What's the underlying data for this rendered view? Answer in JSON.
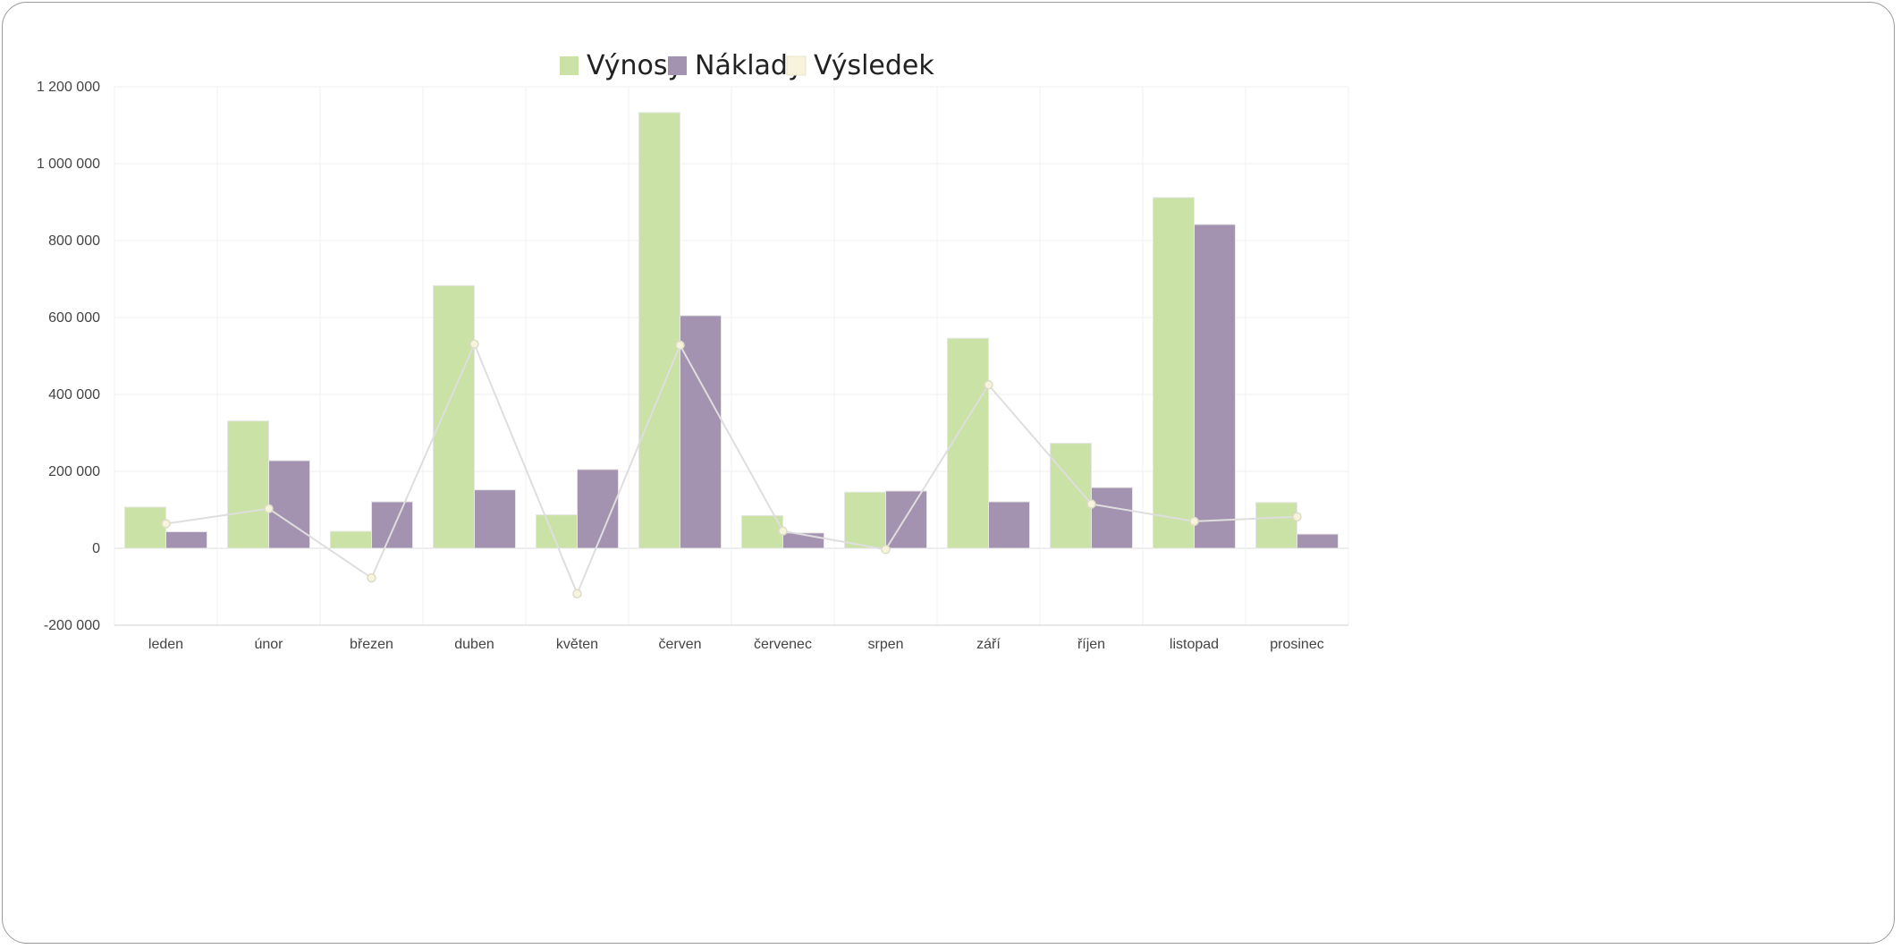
{
  "chart_data": {
    "type": "bar",
    "categories": [
      "leden",
      "únor",
      "březen",
      "duben",
      "květen",
      "červen",
      "červenec",
      "srpen",
      "září",
      "říjen",
      "listopad",
      "prosinec"
    ],
    "series": [
      {
        "name": "Výnosy",
        "type": "bar",
        "color": "#cbe2a6",
        "values": [
          107000,
          331000,
          44000,
          683000,
          87000,
          1133000,
          85000,
          146000,
          546000,
          273000,
          912000,
          119000
        ]
      },
      {
        "name": "Náklady",
        "type": "bar",
        "color": "#a493b0",
        "values": [
          43000,
          228000,
          121000,
          152000,
          205000,
          605000,
          40000,
          149000,
          121000,
          158000,
          842000,
          37000
        ]
      },
      {
        "name": "Výsledek",
        "type": "line",
        "color": "#f7f3dc",
        "values": [
          64000,
          103000,
          -77000,
          531000,
          -118000,
          528000,
          45000,
          -3000,
          425000,
          115000,
          70000,
          82000
        ]
      }
    ],
    "yticks": [
      "1 200 000",
      "1 000 000",
      "800 000",
      "600 000",
      "400 000",
      "200 000",
      "0",
      "-200 000"
    ],
    "ylim": [
      -200000,
      1200000
    ],
    "grid": true,
    "legend_position": "top-center"
  }
}
